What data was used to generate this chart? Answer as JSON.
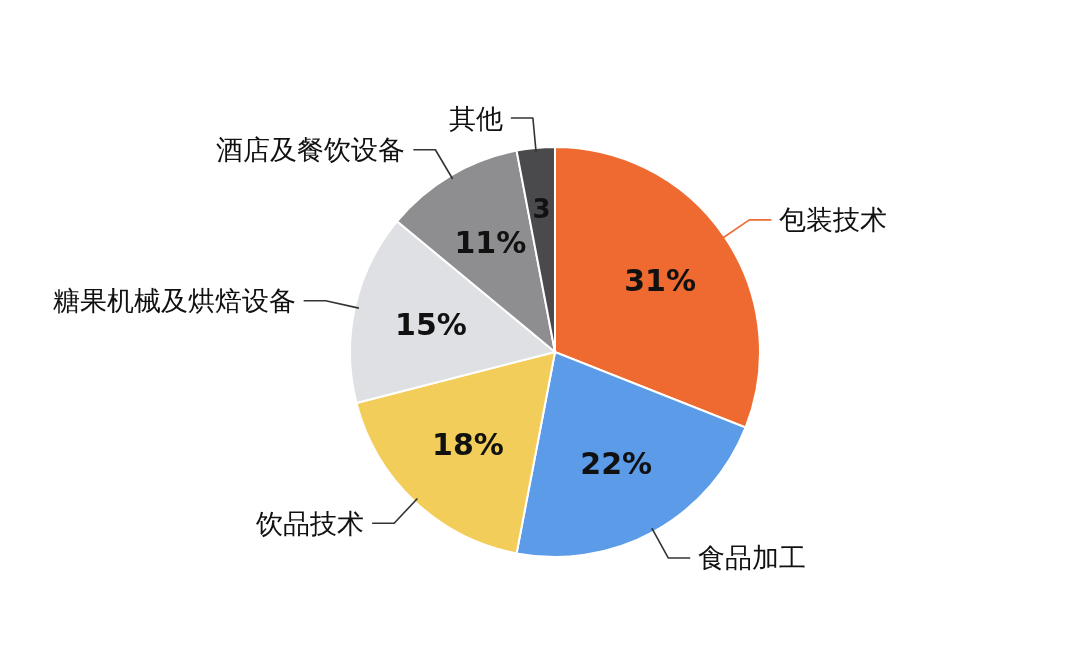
{
  "chart_data": {
    "type": "pie",
    "categories": [
      "包装技术",
      "食品加工",
      "饮品技术",
      "糖果机械及烘焙设备",
      "酒店及餐饮设备",
      "其他"
    ],
    "values": [
      31,
      22,
      18,
      15,
      11,
      3
    ],
    "colors": [
      "#ee6a30",
      "#5b9be8",
      "#f3cd5a",
      "#dfe0e3",
      "#8e8e90",
      "#4a4a4c"
    ],
    "value_labels": [
      "31%",
      "22%",
      "18%",
      "15%",
      "11%",
      "3"
    ]
  }
}
